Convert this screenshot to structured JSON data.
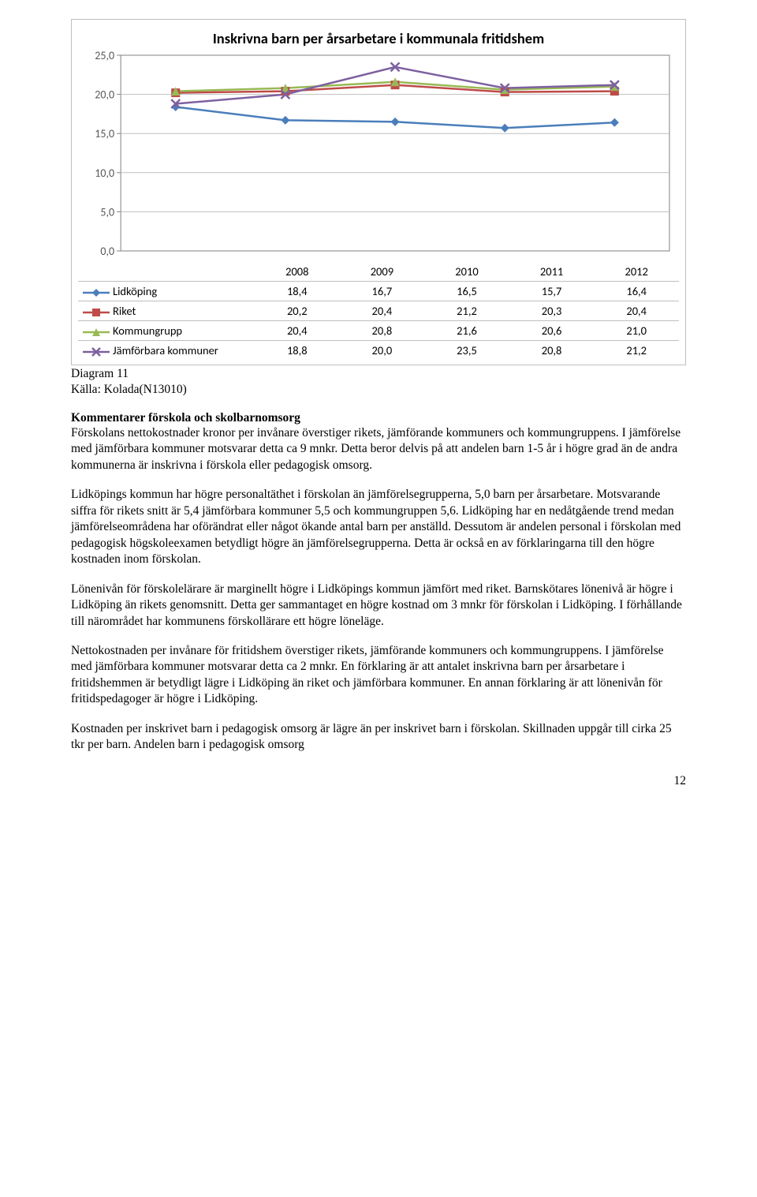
{
  "chart": {
    "type": "line",
    "title": "Inskrivna barn per årsarbetare i kommunala fritidshem",
    "title_fontsize": 18.5,
    "font_family": "Calibri",
    "categories": [
      "2008",
      "2009",
      "2010",
      "2011",
      "2012"
    ],
    "ylim": [
      0,
      25
    ],
    "ytick_step": 5,
    "yticks": [
      "0,0",
      "5,0",
      "10,0",
      "15,0",
      "20,0",
      "25,0"
    ],
    "grid_color": "#bfbfbf",
    "background_color": "#ffffff",
    "axis_color": "#808080",
    "series": [
      {
        "name": "Lidköping",
        "marker": "diamond",
        "color": "#4a7ebb",
        "line_width": 2.5,
        "values_text": [
          "18,4",
          "16,7",
          "16,5",
          "15,7",
          "16,4"
        ],
        "values": [
          18.4,
          16.7,
          16.5,
          15.7,
          16.4
        ]
      },
      {
        "name": "Riket",
        "marker": "square",
        "color": "#be4b48",
        "line_width": 2.5,
        "values_text": [
          "20,2",
          "20,4",
          "21,2",
          "20,3",
          "20,4"
        ],
        "values": [
          20.2,
          20.4,
          21.2,
          20.3,
          20.4
        ]
      },
      {
        "name": "Kommungrupp",
        "marker": "triangle",
        "color": "#98b954",
        "line_width": 2.5,
        "values_text": [
          "20,4",
          "20,8",
          "21,6",
          "20,6",
          "21,0"
        ],
        "values": [
          20.4,
          20.8,
          21.6,
          20.6,
          21.0
        ]
      },
      {
        "name": "Jämförbara kommuner",
        "marker": "x",
        "color": "#7d60a0",
        "line_width": 2.5,
        "values_text": [
          "18,8",
          "20,0",
          "23,5",
          "20,8",
          "21,2"
        ],
        "values": [
          18.8,
          20.0,
          23.5,
          20.8,
          21.2
        ]
      }
    ]
  },
  "source": {
    "diagram_label": "Diagram 11",
    "source_label": "Källa: Kolada(N13010)"
  },
  "heading": "Kommentarer förskola och skolbarnomsorg",
  "para1": "Förskolans nettokostnader kronor per invånare överstiger rikets, jämförande kommuners och kommungruppens. I jämförelse med jämförbara kommuner motsvarar detta ca 9 mnkr. Detta beror delvis på att andelen barn 1-5 år i högre grad än de andra kommunerna är inskrivna i förskola eller pedagogisk omsorg.",
  "para2": "Lidköpings kommun har högre personaltäthet i förskolan än jämförelsegrupperna, 5,0 barn per årsarbetare. Motsvarande siffra för rikets snitt är 5,4 jämförbara kommuner 5,5 och kommungruppen 5,6. Lidköping har en nedåtgående trend medan jämförelseområdena har oförändrat eller något ökande antal barn per anställd. Dessutom är andelen personal i förskolan med pedagogisk högskoleexamen betydligt högre än jämförelsegrupperna. Detta är också en av förklaringarna till den högre kostnaden inom förskolan.",
  "para3": "Lönenivån för förskolelärare är marginellt högre i Lidköpings kommun jämfört med riket. Barnskötares lönenivå är högre i Lidköping än rikets genomsnitt. Detta ger sammantaget en högre kostnad om 3 mnkr för förskolan i Lidköping. I förhållande till närområdet har kommunens förskollärare ett högre löneläge.",
  "para4": "Nettokostnaden per invånare för fritidshem överstiger rikets, jämförande kommuners och kommungruppens. I jämförelse med jämförbara kommuner motsvarar detta ca 2 mnkr. En förklaring är att antalet inskrivna barn per årsarbetare i fritidshemmen är betydligt lägre i Lidköping än riket och jämförbara kommuner. En annan förklaring är att lönenivån för fritidspedagoger är högre i Lidköping.",
  "para5": "Kostnaden per inskrivet barn i pedagogisk omsorg är lägre än per inskrivet barn i förskolan. Skillnaden uppgår till cirka 25 tkr per barn. Andelen barn i pedagogisk omsorg",
  "page_number": "12"
}
